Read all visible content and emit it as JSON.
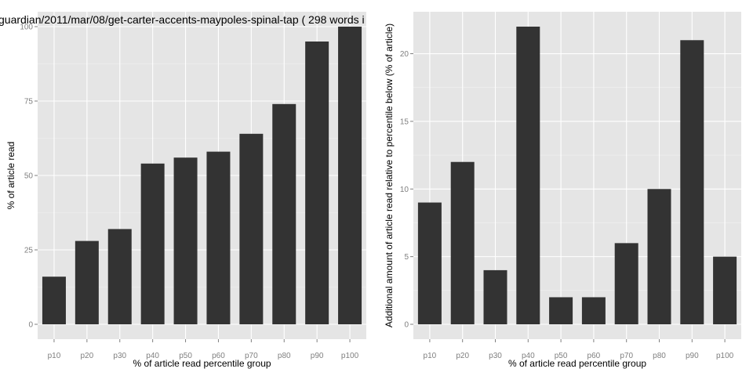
{
  "chart_data": [
    {
      "type": "bar",
      "title": "guardian/2011/mar/08/get-carter-accents-maypoles-spinal-tap ( 298 words i",
      "xlabel": "% of article read percentile group",
      "ylabel": "% of article read",
      "categories": [
        "p10",
        "p20",
        "p30",
        "p40",
        "p50",
        "p60",
        "p70",
        "p80",
        "p90",
        "p100"
      ],
      "values": [
        16,
        28,
        32,
        54,
        56,
        58,
        64,
        74,
        95,
        100
      ],
      "ylim": [
        -5,
        105
      ],
      "yticks": [
        0,
        25,
        50,
        75,
        100
      ],
      "grid": true,
      "bar_color": "#333333",
      "panel_color": "#e5e5e5"
    },
    {
      "type": "bar",
      "title": "",
      "xlabel": "% of article read percentile group",
      "ylabel": "Additional amount of article read relative to percentile below (% of article)",
      "categories": [
        "p10",
        "p20",
        "p30",
        "p40",
        "p50",
        "p60",
        "p70",
        "p80",
        "p90",
        "p100"
      ],
      "values": [
        9,
        12,
        4,
        22,
        2,
        2,
        6,
        10,
        21,
        5
      ],
      "ylim": [
        -1.1,
        23.1
      ],
      "yticks": [
        0,
        5,
        10,
        15,
        20
      ],
      "grid": true,
      "bar_color": "#333333",
      "panel_color": "#e5e5e5"
    }
  ]
}
